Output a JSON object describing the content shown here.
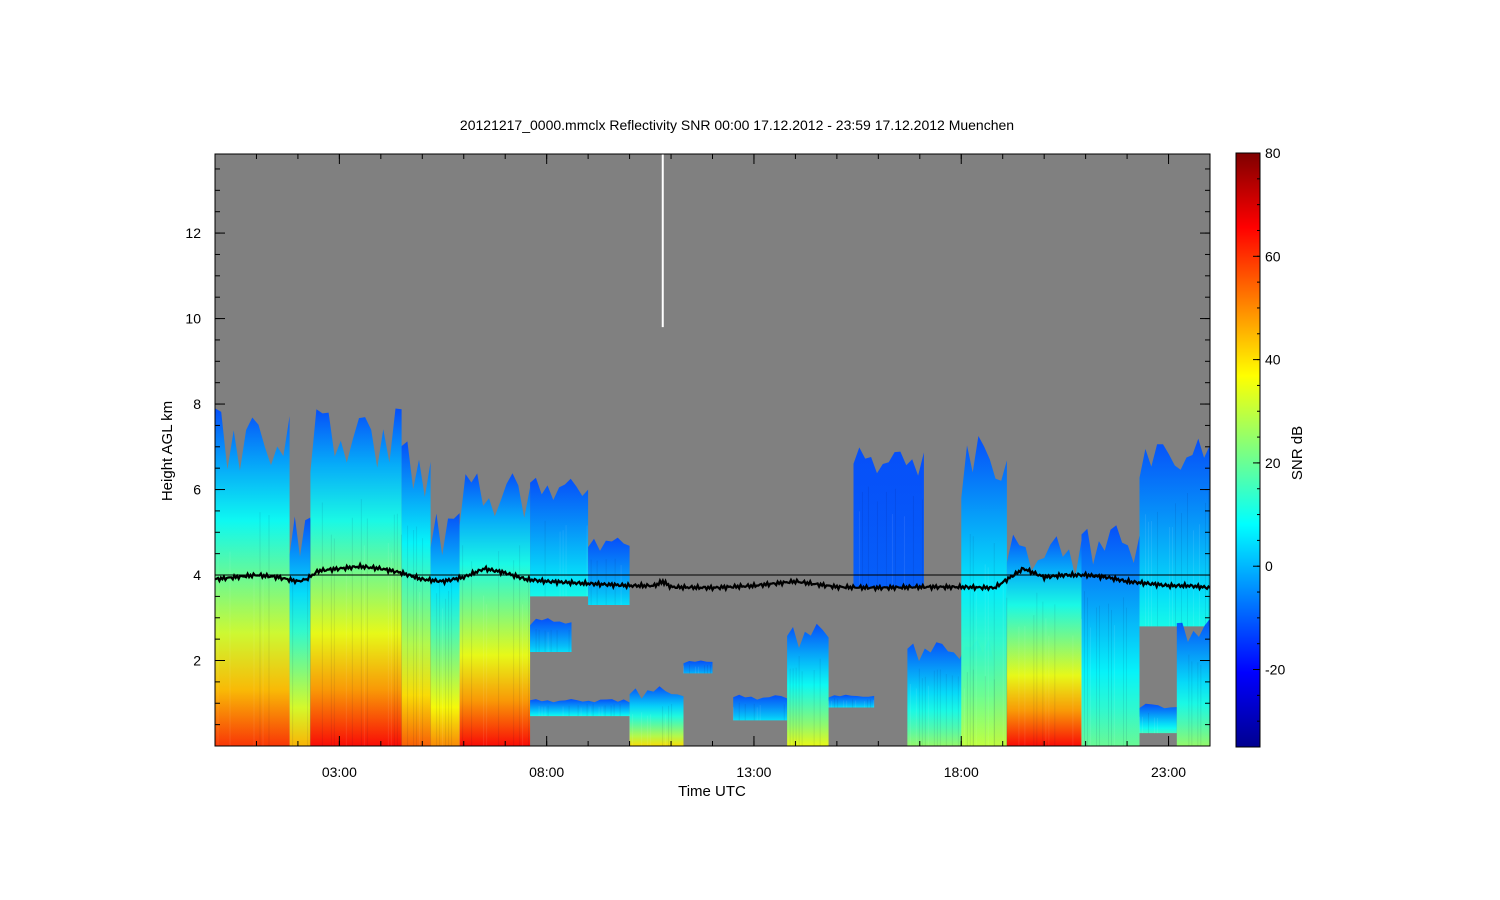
{
  "chart_data": {
    "type": "heatmap",
    "title": "20121217_0000.mmclx Reflectivity SNR   00:00 17.12.2012 - 23:59 17.12.2012 Muenchen",
    "xlabel": "Time UTC",
    "ylabel": "Height AGL km",
    "colorbar_label": "SNR dB",
    "xlim_hours": [
      0.0,
      24.0
    ],
    "ylim_km": [
      0.0,
      13.85
    ],
    "x_ticks": [
      {
        "value": 3,
        "label": "03:00"
      },
      {
        "value": 8,
        "label": "08:00"
      },
      {
        "value": 13,
        "label": "13:00"
      },
      {
        "value": 18,
        "label": "18:00"
      },
      {
        "value": 23,
        "label": "23:00"
      }
    ],
    "x_minor_step_hours": 1,
    "y_ticks": [
      {
        "value": 2,
        "label": "2"
      },
      {
        "value": 4,
        "label": "4"
      },
      {
        "value": 6,
        "label": "6"
      },
      {
        "value": 8,
        "label": "8"
      },
      {
        "value": 10,
        "label": "10"
      },
      {
        "value": 12,
        "label": "12"
      }
    ],
    "y_minor_step_km": 0.5,
    "colorbar": {
      "range": [
        -35,
        80
      ],
      "ticks": [
        {
          "value": -20,
          "label": "-20"
        },
        {
          "value": 0,
          "label": "0"
        },
        {
          "value": 20,
          "label": "20"
        },
        {
          "value": 40,
          "label": "40"
        },
        {
          "value": 60,
          "label": "60"
        },
        {
          "value": 80,
          "label": "80"
        }
      ],
      "colormap": "jet",
      "colors": [
        "#00008f",
        "#0000ff",
        "#007fff",
        "#00ffff",
        "#7fff7f",
        "#ffff00",
        "#ff7f00",
        "#ff0000",
        "#7f0000"
      ]
    },
    "background_color": "#808080",
    "reference_line_km": 4.0,
    "cloud_layers": [
      {
        "t0": 0.0,
        "t1": 1.8,
        "top": 7.9,
        "base": 0.0,
        "peak_snr": 60
      },
      {
        "t0": 1.8,
        "t1": 2.3,
        "top": 5.5,
        "base": 0.0,
        "peak_snr": 45
      },
      {
        "t0": 2.3,
        "t1": 4.5,
        "top": 8.0,
        "base": 0.0,
        "peak_snr": 65
      },
      {
        "t0": 4.5,
        "t1": 5.2,
        "top": 7.2,
        "base": 0.0,
        "peak_snr": 55
      },
      {
        "t0": 5.2,
        "t1": 5.9,
        "top": 5.6,
        "base": 0.0,
        "peak_snr": 50
      },
      {
        "t0": 5.9,
        "t1": 7.6,
        "top": 6.5,
        "base": 0.0,
        "peak_snr": 65
      },
      {
        "t0": 7.6,
        "t1": 9.0,
        "top": 6.3,
        "base": 3.5,
        "peak_snr": 10
      },
      {
        "t0": 9.0,
        "t1": 10.0,
        "top": 4.9,
        "base": 3.3,
        "peak_snr": 5
      },
      {
        "t0": 7.6,
        "t1": 8.6,
        "top": 3.0,
        "base": 2.2,
        "peak_snr": 5
      },
      {
        "t0": 7.6,
        "t1": 10.0,
        "top": 1.1,
        "base": 0.7,
        "peak_snr": 10
      },
      {
        "t0": 10.0,
        "t1": 11.3,
        "top": 1.4,
        "base": 0.0,
        "peak_snr": 40
      },
      {
        "t0": 11.3,
        "t1": 12.0,
        "top": 2.0,
        "base": 1.7,
        "peak_snr": 0
      },
      {
        "t0": 12.5,
        "t1": 13.8,
        "top": 1.2,
        "base": 0.6,
        "peak_snr": 5
      },
      {
        "t0": 13.8,
        "t1": 14.8,
        "top": 2.9,
        "base": 0.0,
        "peak_snr": 35
      },
      {
        "t0": 14.8,
        "t1": 15.9,
        "top": 1.2,
        "base": 0.9,
        "peak_snr": 5
      },
      {
        "t0": 15.4,
        "t1": 17.1,
        "top": 7.0,
        "base": 3.7,
        "peak_snr": -10
      },
      {
        "t0": 16.7,
        "t1": 18.8,
        "top": 2.5,
        "base": 0.0,
        "peak_snr": 25
      },
      {
        "t0": 18.0,
        "t1": 19.1,
        "top": 7.4,
        "base": 0.0,
        "peak_snr": 30
      },
      {
        "t0": 19.1,
        "t1": 20.9,
        "top": 5.0,
        "base": 0.0,
        "peak_snr": 65
      },
      {
        "t0": 20.9,
        "t1": 22.3,
        "top": 5.3,
        "base": 0.0,
        "peak_snr": 20
      },
      {
        "t0": 22.3,
        "t1": 24.0,
        "top": 7.2,
        "base": 2.8,
        "peak_snr": 10
      },
      {
        "t0": 22.3,
        "t1": 23.2,
        "top": 1.0,
        "base": 0.3,
        "peak_snr": 15
      },
      {
        "t0": 23.2,
        "t1": 24.0,
        "top": 3.0,
        "base": 0.0,
        "peak_snr": 25
      }
    ],
    "black_line_series": {
      "name": "",
      "x": [
        0,
        0.5,
        1.0,
        1.5,
        2.0,
        2.2,
        2.5,
        3.0,
        3.5,
        4.0,
        4.5,
        5.0,
        5.5,
        6.0,
        6.5,
        7.0,
        7.5,
        8.0,
        9.0,
        10.0,
        10.6,
        10.8,
        11.0,
        12.0,
        13.0,
        14.0,
        15.0,
        16.0,
        17.0,
        18.0,
        18.8,
        19.5,
        20.0,
        20.5,
        21.0,
        21.5,
        22.0,
        22.5,
        23.0,
        23.5,
        24.0
      ],
      "y": [
        3.9,
        3.95,
        4.0,
        3.95,
        3.85,
        3.9,
        4.1,
        4.15,
        4.2,
        4.15,
        4.05,
        3.9,
        3.85,
        3.95,
        4.15,
        4.05,
        3.9,
        3.85,
        3.8,
        3.75,
        3.75,
        3.85,
        3.72,
        3.7,
        3.75,
        3.85,
        3.72,
        3.7,
        3.72,
        3.72,
        3.7,
        4.15,
        3.95,
        4.0,
        4.0,
        3.95,
        3.85,
        3.8,
        3.75,
        3.75,
        3.7
      ]
    },
    "white_line_artifact": {
      "x": 10.8,
      "y_from": 9.8,
      "y_to": 13.85
    }
  }
}
